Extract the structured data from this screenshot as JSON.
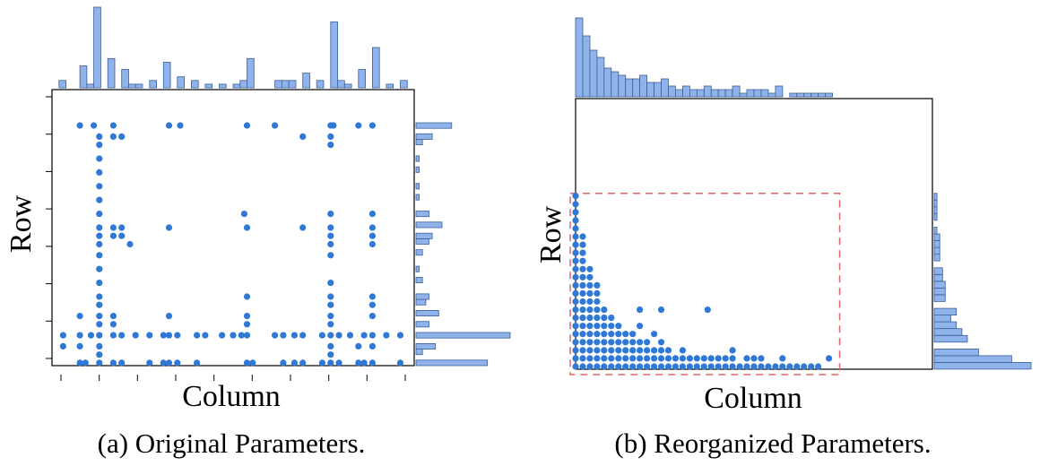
{
  "chart_data": [
    {
      "panel": "a",
      "type": "scatter",
      "caption": "(a) Original Parameters.",
      "xlabel": "Column",
      "ylabel": "Row",
      "xlim": [
        0,
        130
      ],
      "ylim": [
        0,
        100
      ],
      "marginals": true,
      "points": [
        [
          10,
          87
        ],
        [
          15,
          87
        ],
        [
          22,
          87
        ],
        [
          42,
          87
        ],
        [
          46,
          87
        ],
        [
          70,
          87
        ],
        [
          80,
          87
        ],
        [
          100,
          87
        ],
        [
          101,
          87
        ],
        [
          110,
          87
        ],
        [
          115,
          87
        ],
        [
          17,
          83
        ],
        [
          22,
          83
        ],
        [
          25,
          83
        ],
        [
          90,
          83
        ],
        [
          100,
          83
        ],
        [
          17,
          80
        ],
        [
          100,
          80
        ],
        [
          17,
          75
        ],
        [
          17,
          70
        ],
        [
          17,
          65
        ],
        [
          17,
          60
        ],
        [
          17,
          55
        ],
        [
          69,
          55
        ],
        [
          100,
          55
        ],
        [
          115,
          55
        ],
        [
          17,
          50
        ],
        [
          22,
          50
        ],
        [
          25,
          50
        ],
        [
          42,
          50
        ],
        [
          70,
          50
        ],
        [
          90,
          50
        ],
        [
          100,
          50
        ],
        [
          115,
          50
        ],
        [
          17,
          47
        ],
        [
          22,
          47
        ],
        [
          25,
          47
        ],
        [
          100,
          47
        ],
        [
          115,
          47
        ],
        [
          17,
          44
        ],
        [
          28,
          44
        ],
        [
          100,
          44
        ],
        [
          115,
          44
        ],
        [
          17,
          40
        ],
        [
          100,
          40
        ],
        [
          17,
          35
        ],
        [
          17,
          30
        ],
        [
          100,
          30
        ],
        [
          17,
          25
        ],
        [
          70,
          25
        ],
        [
          100,
          25
        ],
        [
          115,
          25
        ],
        [
          17,
          22
        ],
        [
          100,
          22
        ],
        [
          115,
          22
        ],
        [
          10,
          18
        ],
        [
          17,
          18
        ],
        [
          22,
          18
        ],
        [
          42,
          18
        ],
        [
          70,
          18
        ],
        [
          100,
          18
        ],
        [
          115,
          18
        ],
        [
          17,
          15
        ],
        [
          22,
          15
        ],
        [
          70,
          15
        ],
        [
          100,
          15
        ],
        [
          4,
          11
        ],
        [
          10,
          11
        ],
        [
          14,
          11
        ],
        [
          17,
          11
        ],
        [
          22,
          11
        ],
        [
          25,
          11
        ],
        [
          30,
          11
        ],
        [
          35,
          11
        ],
        [
          40,
          11
        ],
        [
          42,
          11
        ],
        [
          45,
          11
        ],
        [
          52,
          11
        ],
        [
          55,
          11
        ],
        [
          61,
          11
        ],
        [
          65,
          11
        ],
        [
          68,
          11
        ],
        [
          70,
          11
        ],
        [
          80,
          11
        ],
        [
          83,
          11
        ],
        [
          87,
          11
        ],
        [
          90,
          11
        ],
        [
          97,
          11
        ],
        [
          100,
          11
        ],
        [
          103,
          11
        ],
        [
          107,
          11
        ],
        [
          112,
          11
        ],
        [
          115,
          11
        ],
        [
          120,
          11
        ],
        [
          125,
          11
        ],
        [
          4,
          7
        ],
        [
          10,
          7
        ],
        [
          17,
          7
        ],
        [
          100,
          7
        ],
        [
          110,
          7
        ],
        [
          115,
          7
        ],
        [
          17,
          4
        ],
        [
          100,
          4
        ],
        [
          10,
          1
        ],
        [
          12,
          1
        ],
        [
          17,
          1
        ],
        [
          22,
          1
        ],
        [
          25,
          1
        ],
        [
          35,
          1
        ],
        [
          40,
          1
        ],
        [
          42,
          1
        ],
        [
          45,
          1
        ],
        [
          52,
          1
        ],
        [
          70,
          1
        ],
        [
          72,
          1
        ],
        [
          83,
          1
        ],
        [
          87,
          1
        ],
        [
          90,
          1
        ],
        [
          97,
          1
        ],
        [
          100,
          1
        ],
        [
          103,
          1
        ],
        [
          110,
          1
        ],
        [
          112,
          1
        ],
        [
          115,
          1
        ],
        [
          125,
          1
        ]
      ]
    },
    {
      "panel": "b",
      "type": "scatter",
      "caption": "(b) Reorganized Parameters.",
      "xlabel": "Column",
      "ylabel": "Row",
      "xlim": [
        0,
        100
      ],
      "ylim": [
        0,
        100
      ],
      "marginals": true,
      "highlight_box": {
        "x": [
          -1.5,
          74
        ],
        "y": [
          -2,
          65
        ],
        "style": "dashed",
        "color": "#e06666"
      },
      "points": [
        [
          0,
          64
        ],
        [
          0,
          61
        ],
        [
          0,
          58
        ],
        [
          0,
          55
        ],
        [
          0,
          52
        ],
        [
          0,
          49
        ],
        [
          0,
          46
        ],
        [
          0,
          43
        ],
        [
          0,
          40
        ],
        [
          0,
          37
        ],
        [
          0,
          34
        ],
        [
          0,
          31
        ],
        [
          0,
          28
        ],
        [
          0,
          25
        ],
        [
          0,
          22
        ],
        [
          0,
          19
        ],
        [
          0,
          16
        ],
        [
          0,
          13
        ],
        [
          0,
          10
        ],
        [
          0,
          7
        ],
        [
          0,
          4
        ],
        [
          0,
          1
        ],
        [
          2,
          49
        ],
        [
          2,
          46
        ],
        [
          2,
          43
        ],
        [
          2,
          40
        ],
        [
          2,
          37
        ],
        [
          2,
          34
        ],
        [
          2,
          31
        ],
        [
          2,
          28
        ],
        [
          2,
          25
        ],
        [
          2,
          22
        ],
        [
          2,
          19
        ],
        [
          2,
          16
        ],
        [
          2,
          13
        ],
        [
          2,
          10
        ],
        [
          2,
          7
        ],
        [
          2,
          4
        ],
        [
          2,
          1
        ],
        [
          4,
          37
        ],
        [
          4,
          34
        ],
        [
          4,
          31
        ],
        [
          4,
          28
        ],
        [
          4,
          25
        ],
        [
          4,
          22
        ],
        [
          4,
          19
        ],
        [
          4,
          16
        ],
        [
          4,
          13
        ],
        [
          4,
          10
        ],
        [
          4,
          7
        ],
        [
          4,
          4
        ],
        [
          4,
          1
        ],
        [
          6,
          31
        ],
        [
          6,
          28
        ],
        [
          6,
          25
        ],
        [
          6,
          22
        ],
        [
          6,
          19
        ],
        [
          6,
          16
        ],
        [
          6,
          13
        ],
        [
          6,
          10
        ],
        [
          6,
          7
        ],
        [
          6,
          4
        ],
        [
          6,
          1
        ],
        [
          8,
          22
        ],
        [
          8,
          19
        ],
        [
          8,
          16
        ],
        [
          8,
          13
        ],
        [
          8,
          10
        ],
        [
          8,
          7
        ],
        [
          8,
          4
        ],
        [
          8,
          1
        ],
        [
          10,
          19
        ],
        [
          10,
          16
        ],
        [
          10,
          13
        ],
        [
          10,
          10
        ],
        [
          10,
          7
        ],
        [
          10,
          4
        ],
        [
          10,
          1
        ],
        [
          12,
          16
        ],
        [
          12,
          13
        ],
        [
          12,
          10
        ],
        [
          12,
          7
        ],
        [
          12,
          4
        ],
        [
          12,
          1
        ],
        [
          14,
          13
        ],
        [
          14,
          10
        ],
        [
          14,
          7
        ],
        [
          14,
          4
        ],
        [
          14,
          1
        ],
        [
          16,
          13
        ],
        [
          16,
          10
        ],
        [
          16,
          7
        ],
        [
          16,
          4
        ],
        [
          16,
          1
        ],
        [
          18,
          16
        ],
        [
          18,
          10
        ],
        [
          18,
          7
        ],
        [
          18,
          4
        ],
        [
          18,
          1
        ],
        [
          20,
          10
        ],
        [
          20,
          7
        ],
        [
          20,
          4
        ],
        [
          20,
          1
        ],
        [
          22,
          13
        ],
        [
          22,
          7
        ],
        [
          22,
          4
        ],
        [
          22,
          1
        ],
        [
          24,
          10
        ],
        [
          24,
          7
        ],
        [
          24,
          4
        ],
        [
          24,
          1
        ],
        [
          26,
          7
        ],
        [
          26,
          4
        ],
        [
          26,
          1
        ],
        [
          28,
          4
        ],
        [
          28,
          1
        ],
        [
          30,
          7
        ],
        [
          30,
          4
        ],
        [
          30,
          1
        ],
        [
          32,
          4
        ],
        [
          32,
          1
        ],
        [
          34,
          4
        ],
        [
          34,
          1
        ],
        [
          36,
          4
        ],
        [
          36,
          1
        ],
        [
          38,
          4
        ],
        [
          38,
          1
        ],
        [
          40,
          4
        ],
        [
          40,
          1
        ],
        [
          42,
          4
        ],
        [
          42,
          1
        ],
        [
          44,
          4
        ],
        [
          44,
          1
        ],
        [
          46,
          1
        ],
        [
          48,
          4
        ],
        [
          48,
          1
        ],
        [
          50,
          1
        ],
        [
          52,
          4
        ],
        [
          52,
          1
        ],
        [
          54,
          1
        ],
        [
          56,
          1
        ],
        [
          58,
          4
        ],
        [
          58,
          1
        ],
        [
          60,
          1
        ],
        [
          62,
          1
        ],
        [
          64,
          1
        ],
        [
          66,
          1
        ],
        [
          68,
          1
        ],
        [
          71,
          4
        ],
        [
          24,
          22
        ],
        [
          37,
          22
        ],
        [
          18,
          22
        ],
        [
          44,
          7
        ],
        [
          50,
          4
        ]
      ]
    }
  ]
}
